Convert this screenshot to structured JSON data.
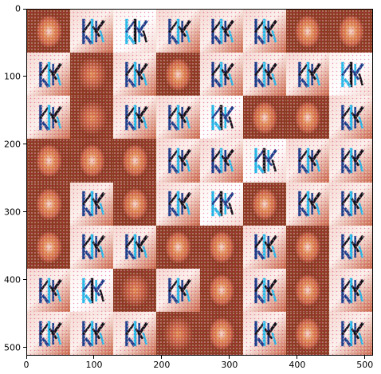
{
  "image": {
    "description_id": "generated-sample-grid",
    "rows": 8,
    "cols": 8,
    "palette": {
      "background": "#ffffff",
      "tile_base": "#c86444",
      "tile_light": "#f3d4cc",
      "tile_pale": "#fbefea",
      "tile_dark": "#8c3a22",
      "glyph_blue": "#1c3e8a",
      "glyph_cyan": "#28b8e8",
      "glyph_black": "#101018",
      "glyph_orange": "#e08a52"
    },
    "tiles": [
      [
        "face",
        "glyph",
        "glyph-cyan",
        "glyph",
        "glyph",
        "glyph",
        "face",
        "face"
      ],
      [
        "glyph",
        "face-dark",
        "glyph",
        "face",
        "glyph",
        "glyph",
        "glyph",
        "glyph-cyan"
      ],
      [
        "glyph",
        "face-dark",
        "glyph",
        "glyph",
        "glyph-cyan",
        "face",
        "face",
        "glyph"
      ],
      [
        "face",
        "face",
        "face",
        "glyph",
        "glyph",
        "glyph-cyan",
        "glyph",
        "glyph"
      ],
      [
        "face",
        "glyph",
        "face",
        "glyph",
        "glyph-cyan",
        "face",
        "glyph",
        "glyph"
      ],
      [
        "face",
        "glyph",
        "glyph",
        "face",
        "face",
        "glyph",
        "face",
        "glyph"
      ],
      [
        "glyph",
        "glyph-cyan",
        "face-dark",
        "glyph",
        "face",
        "glyph",
        "face",
        "glyph"
      ],
      [
        "glyph",
        "glyph",
        "glyph",
        "face-dark",
        "face",
        "glyph",
        "face",
        "glyph"
      ]
    ]
  },
  "axes": {
    "x_ticks": [
      "0",
      "100",
      "200",
      "300",
      "400",
      "500"
    ],
    "y_ticks": [
      "0",
      "100",
      "200",
      "300",
      "400",
      "500"
    ],
    "x_range": [
      0,
      512
    ],
    "y_range": [
      0,
      512
    ]
  }
}
